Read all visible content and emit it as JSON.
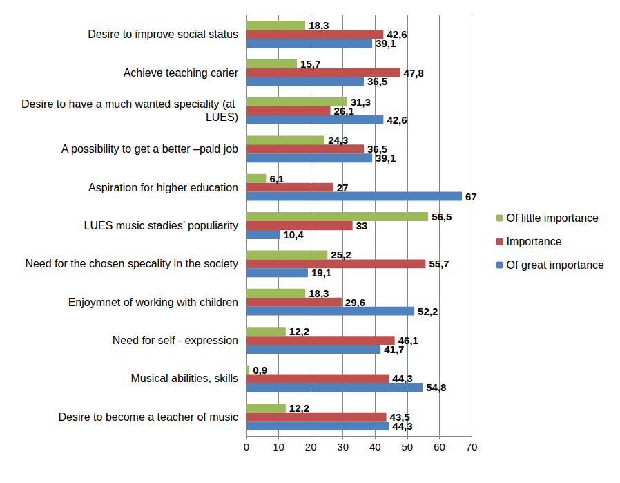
{
  "chart_data": {
    "type": "bar",
    "orientation": "horizontal",
    "categories": [
      "Desire to improve social status",
      "Achieve teaching carier",
      "Desire to have a much wanted speciality (at LUES)",
      "A possibility to get a better –paid job",
      "Aspiration for higher education",
      "LUES music stadies’ populiarity",
      "Need for the chosen specality in the society",
      "Enjoymnet of working with children",
      "Need for self - expression",
      "Musical abilities, skills",
      "Desire to become a teacher of music"
    ],
    "series": [
      {
        "name": "Of little importance",
        "color": "#9bbb59",
        "values": [
          18.3,
          15.7,
          31.3,
          24.3,
          6.1,
          56.5,
          25.2,
          18.3,
          12.2,
          0.9,
          12.2
        ],
        "value_labels": [
          "18,3",
          "15,7",
          "31,3",
          "24,3",
          "6,1",
          "56,5",
          "25,2",
          "18,3",
          "12,2",
          "0,9",
          "12,2"
        ]
      },
      {
        "name": "Importance",
        "color": "#c0504d",
        "values": [
          42.6,
          47.8,
          26.1,
          36.5,
          27,
          33,
          55.7,
          29.6,
          46.1,
          44.3,
          43.5
        ],
        "value_labels": [
          "42,6",
          "47,8",
          "26,1",
          "36,5",
          "27",
          "33",
          "55,7",
          "29,6",
          "46,1",
          "44,3",
          "43,5"
        ]
      },
      {
        "name": "Of great importance",
        "color": "#4f81bd",
        "values": [
          39.1,
          36.5,
          42.6,
          39.1,
          67,
          10.4,
          19.1,
          52.2,
          41.7,
          54.8,
          44.3
        ],
        "value_labels": [
          "39,1",
          "36,5",
          "42,6",
          "39,1",
          "67",
          "10,4",
          "19,1",
          "52,2",
          "41,7",
          "54,8",
          "44,3"
        ]
      }
    ],
    "xlim": [
      0,
      70
    ],
    "xticks": [
      0,
      10,
      20,
      30,
      40,
      50,
      60,
      70
    ],
    "grid": true,
    "legend": "right",
    "data_labels": true
  }
}
